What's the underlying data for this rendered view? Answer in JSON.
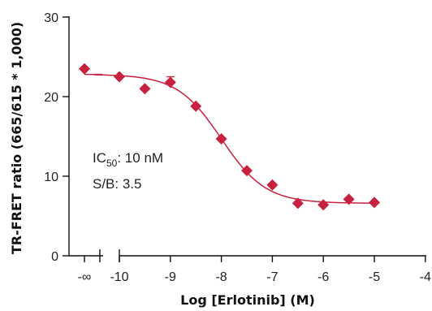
{
  "chart_data": {
    "type": "scatter",
    "title": "",
    "xlabel": "Log [Erlotinib] (M)",
    "ylabel": "TR-FRET ratio (665/615 * 1,000)",
    "xlim": [
      -11,
      -4
    ],
    "ylim": [
      0,
      30
    ],
    "x_axis_break": true,
    "x_ticks": [
      -10,
      -9,
      -8,
      -7,
      -6,
      -5,
      -4
    ],
    "x_tick_labels": [
      "-10",
      "-9",
      "-8",
      "-7",
      "-6",
      "-5",
      "-4"
    ],
    "x_zero_dose_label": "-∞",
    "y_ticks": [
      0,
      10,
      20,
      30
    ],
    "y_tick_labels": [
      "0",
      "10",
      "20",
      "30"
    ],
    "marker": "diamond",
    "color": "#c8203f",
    "grid": false,
    "zero_dose_point": {
      "x": "-∞",
      "y": 23.5
    },
    "series": [
      {
        "points": [
          {
            "x": -10.0,
            "y": 22.5
          },
          {
            "x": -9.5,
            "y": 21.0
          },
          {
            "x": -9.0,
            "y": 21.8,
            "err": 0.7
          },
          {
            "x": -8.5,
            "y": 18.8
          },
          {
            "x": -8.0,
            "y": 14.7
          },
          {
            "x": -7.5,
            "y": 10.7
          },
          {
            "x": -7.0,
            "y": 8.9
          },
          {
            "x": -6.5,
            "y": 6.6
          },
          {
            "x": -6.0,
            "y": 6.4
          },
          {
            "x": -5.5,
            "y": 7.1
          },
          {
            "x": -5.0,
            "y": 6.7
          }
        ]
      }
    ],
    "fit_curve": {
      "top": 22.8,
      "bottom": 6.6,
      "logIC50": -8.0,
      "hill": 1.0,
      "x_range": [
        -10.5,
        -5.0
      ]
    },
    "annotations": {
      "ic50_prefix": "IC",
      "ic50_sub": "50",
      "ic50_value": ": 10 nM",
      "sb": "S/B: 3.5"
    }
  }
}
